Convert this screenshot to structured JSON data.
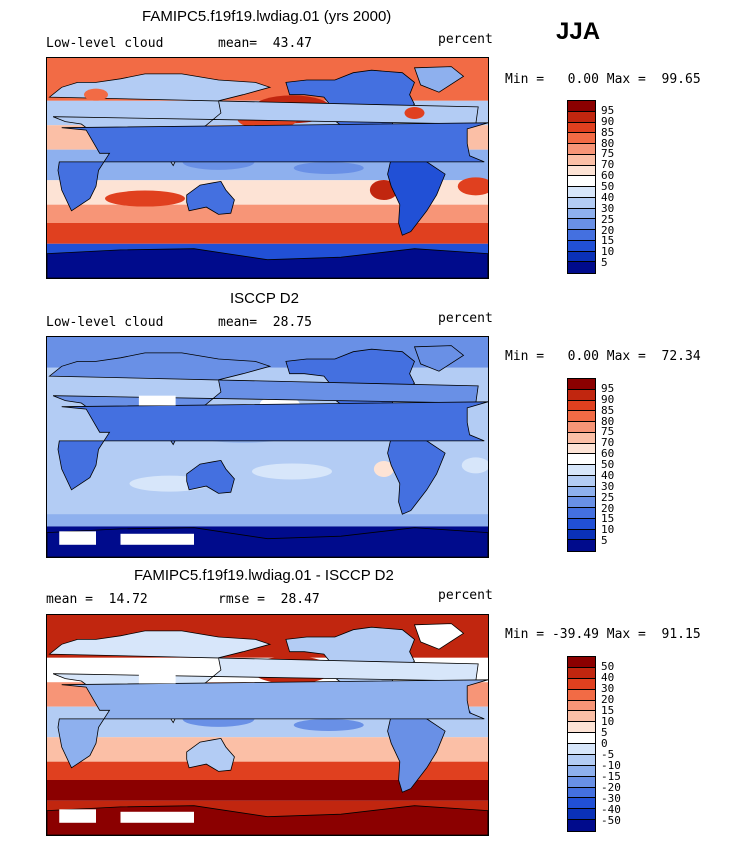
{
  "season": "JJA",
  "colors": {
    "sequential": [
      "#8b0000",
      "#c1260f",
      "#e0401f",
      "#f26b45",
      "#f79577",
      "#fbbfa6",
      "#fde3d5",
      "#ffffff",
      "#d7e6fa",
      "#b3ccf4",
      "#8eb0ee",
      "#6990e6",
      "#4470e0",
      "#2150d6",
      "#0a31b8",
      "#000b8c"
    ],
    "diverging": [
      "#8b0000",
      "#c1260f",
      "#e0401f",
      "#f26b45",
      "#f79577",
      "#fbbfa6",
      "#fde3d5",
      "#ffffff",
      "#d7e6fa",
      "#b3ccf4",
      "#8eb0ee",
      "#6990e6",
      "#4470e0",
      "#2150d6",
      "#0a31b8",
      "#000b8c"
    ],
    "land_outline": "#000000"
  },
  "chart_data": [
    {
      "type": "heatmap",
      "title": "FAMIPC5.f19f19.lwdiag.01 (yrs 2000)",
      "left_label": "Low-level cloud",
      "mean_label": "mean=  43.47",
      "mean": 43.47,
      "units": "percent",
      "minmax_label": "Min =   0.00 Max =  99.65",
      "min": 0.0,
      "max": 99.65,
      "levels": [
        "95",
        "90",
        "85",
        "80",
        "75",
        "70",
        "60",
        "50",
        "40",
        "30",
        "25",
        "20",
        "15",
        "10",
        "5"
      ],
      "field": "model"
    },
    {
      "type": "heatmap",
      "title": "ISCCP D2",
      "left_label": "Low-level cloud",
      "mean_label": "mean=  28.75",
      "mean": 28.75,
      "units": "percent",
      "minmax_label": "Min =   0.00 Max =  72.34",
      "min": 0.0,
      "max": 72.34,
      "levels": [
        "95",
        "90",
        "85",
        "80",
        "75",
        "70",
        "60",
        "50",
        "40",
        "30",
        "25",
        "20",
        "15",
        "10",
        "5"
      ],
      "field": "obs"
    },
    {
      "type": "heatmap",
      "title": "FAMIPC5.f19f19.lwdiag.01 - ISCCP D2",
      "left_label": "mean =  14.72",
      "mean": 14.72,
      "rmse_label": "rmse =  28.47",
      "rmse": 28.47,
      "units": "percent",
      "minmax_label": "Min = -39.49 Max =  91.15",
      "min": -39.49,
      "max": 91.15,
      "levels": [
        "50",
        "40",
        "30",
        "20",
        "15",
        "10",
        "5",
        "0",
        "-5",
        "-10",
        "-15",
        "-20",
        "-30",
        "-40",
        "-50"
      ],
      "field": "diff"
    }
  ]
}
